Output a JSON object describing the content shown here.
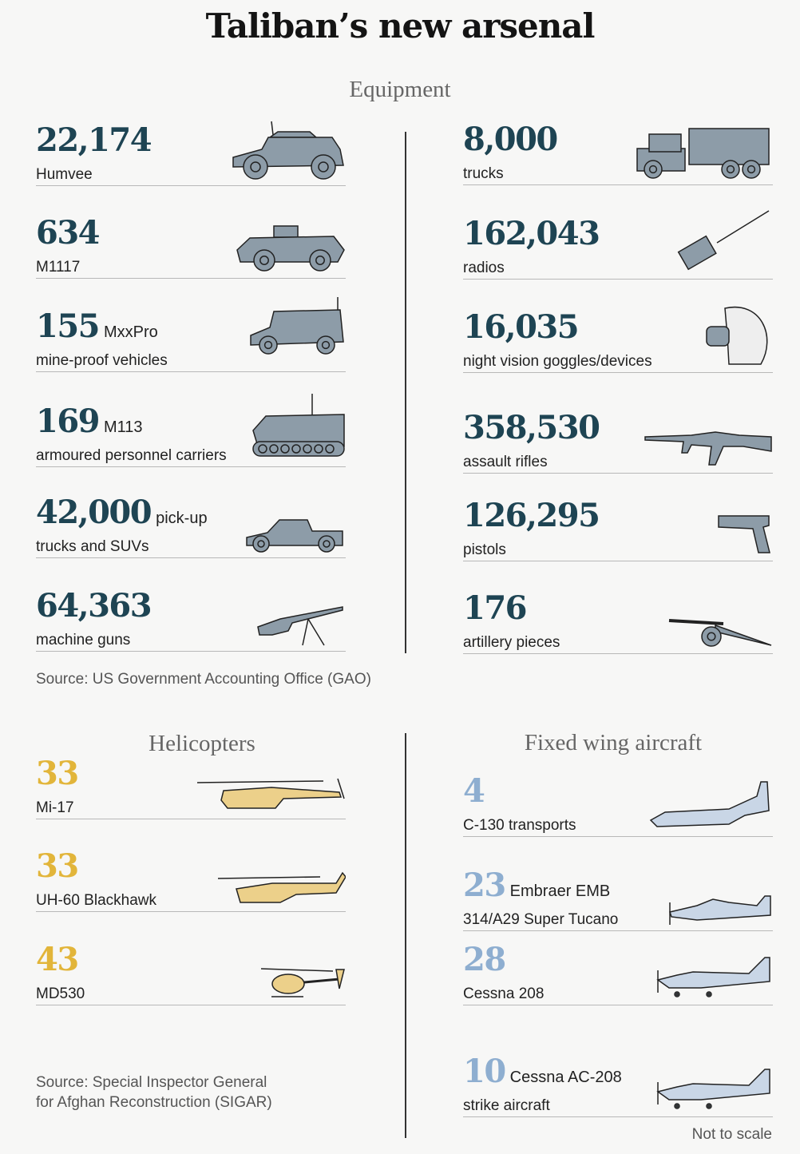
{
  "title": "Taliban’s new arsenal",
  "colors": {
    "equipment": "#1e4453",
    "helicopters": "#e2b53a",
    "fixed_wing": "#8eaed0",
    "equipment_icon": "#8d9ca8",
    "heli_icon": "#ecd08a",
    "plane_icon": "#c9d6e6"
  },
  "equipment": {
    "heading": "Equipment",
    "left": [
      {
        "number": "22,174",
        "suffix": "",
        "label": "Humvee",
        "icon": "humvee-icon"
      },
      {
        "number": "634",
        "suffix": "",
        "label": "M1117",
        "icon": "armoured-car-icon"
      },
      {
        "number": "155",
        "suffix": "MxxPro",
        "label": "mine-proof vehicles",
        "icon": "mrap-icon"
      },
      {
        "number": "169",
        "suffix": "M113",
        "label": "armoured personnel carriers",
        "icon": "apc-icon"
      },
      {
        "number": "42,000",
        "suffix": "pick-up",
        "label": "trucks and SUVs",
        "icon": "pickup-truck-icon"
      },
      {
        "number": "64,363",
        "suffix": "",
        "label": "machine guns",
        "icon": "machine-gun-icon"
      }
    ],
    "right": [
      {
        "number": "8,000",
        "suffix": "",
        "label": "trucks",
        "icon": "truck-icon"
      },
      {
        "number": "162,043",
        "suffix": "",
        "label": "radios",
        "icon": "radio-icon"
      },
      {
        "number": "16,035",
        "suffix": "",
        "label": "night vision goggles/devices",
        "icon": "night-vision-goggles-icon"
      },
      {
        "number": "358,530",
        "suffix": "",
        "label": "assault rifles",
        "icon": "assault-rifle-icon"
      },
      {
        "number": "126,295",
        "suffix": "",
        "label": "pistols",
        "icon": "pistol-icon"
      },
      {
        "number": "176",
        "suffix": "",
        "label": "artillery pieces",
        "icon": "artillery-icon"
      }
    ],
    "source": "Source: US Government Accounting Office (GAO)"
  },
  "helicopters": {
    "heading": "Helicopters",
    "items": [
      {
        "number": "33",
        "suffix": "",
        "label": "Mi-17",
        "icon": "mi17-helicopter-icon"
      },
      {
        "number": "33",
        "suffix": "",
        "label": "UH-60 Blackhawk",
        "icon": "blackhawk-helicopter-icon"
      },
      {
        "number": "43",
        "suffix": "",
        "label": "MD530",
        "icon": "md530-helicopter-icon"
      }
    ],
    "source_line1": "Source: Special Inspector General",
    "source_line2": "for Afghan Reconstruction (SIGAR)"
  },
  "fixed_wing": {
    "heading": "Fixed wing aircraft",
    "items": [
      {
        "number": "4",
        "suffix": "",
        "label": "C-130 transports",
        "icon": "c130-plane-icon"
      },
      {
        "number": "23",
        "suffix": "Embraer EMB",
        "label": "314/A29 Super Tucano",
        "icon": "super-tucano-plane-icon"
      },
      {
        "number": "28",
        "suffix": "",
        "label": "Cessna 208",
        "icon": "cessna-plane-icon"
      },
      {
        "number": "10",
        "suffix": "Cessna AC-208",
        "label": "strike aircraft",
        "icon": "cessna-strike-plane-icon"
      }
    ]
  },
  "note": "Not to scale"
}
